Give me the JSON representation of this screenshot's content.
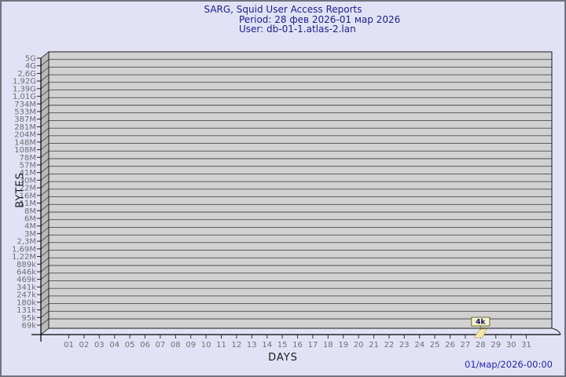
{
  "title": {
    "line1": "SARG, Squid User Access Reports",
    "line2": "Period: 28 фев 2026-01 мар 2026",
    "line3": "User: db-01-1.atlas-2.lan"
  },
  "footer": {
    "timestamp": "01/мар/2026-00:00"
  },
  "colors": {
    "title_text": "#1c1c8f",
    "timestamp_text": "#2424b4",
    "plot_fill": "#d1d1d1",
    "wall_fill": "#b9b9b9",
    "gridline": "#4c4c4c",
    "tick_label": "#6f6f6f",
    "bar_fill": "#f6e8a8",
    "bar_stroke": "#c2b269",
    "annotation_fill": "#f6f3cf",
    "annotation_border": "#6a6a30",
    "annotation_text": "#101060"
  },
  "chart_data": {
    "type": "bar",
    "title": "SARG, Squid User Access Reports",
    "period": "28 фев 2026-01 мар 2026",
    "user": "db-01-1.atlas-2.lan",
    "xlabel": "DAYS",
    "ylabel": "BYTES",
    "x_ticks": [
      "01",
      "02",
      "03",
      "04",
      "05",
      "06",
      "07",
      "08",
      "09",
      "10",
      "11",
      "12",
      "13",
      "14",
      "15",
      "16",
      "17",
      "18",
      "19",
      "20",
      "21",
      "22",
      "23",
      "24",
      "25",
      "26",
      "27",
      "28",
      "29",
      "30",
      "31"
    ],
    "y_ticks": [
      "5G",
      "4G",
      "2,6G",
      "1,92G",
      "1,39G",
      "1,01G",
      "734M",
      "533M",
      "387M",
      "281M",
      "204M",
      "148M",
      "108M",
      "78M",
      "57M",
      "41M",
      "30M",
      "22M",
      "16M",
      "11M",
      "8M",
      "6M",
      "4M",
      "3M",
      "2,3M",
      "1,69M",
      "1,22M",
      "889k",
      "646k",
      "469k",
      "341k",
      "247k",
      "180k",
      "131k",
      "95k",
      "69k"
    ],
    "y_scale": "log",
    "grid": true,
    "legend": "none",
    "points": [
      {
        "day": "28",
        "value_label": "4k",
        "value_bytes": 4000
      }
    ],
    "values_by_day": [
      0,
      0,
      0,
      0,
      0,
      0,
      0,
      0,
      0,
      0,
      0,
      0,
      0,
      0,
      0,
      0,
      0,
      0,
      0,
      0,
      0,
      0,
      0,
      0,
      0,
      0,
      0,
      4000,
      0,
      0,
      0
    ]
  }
}
